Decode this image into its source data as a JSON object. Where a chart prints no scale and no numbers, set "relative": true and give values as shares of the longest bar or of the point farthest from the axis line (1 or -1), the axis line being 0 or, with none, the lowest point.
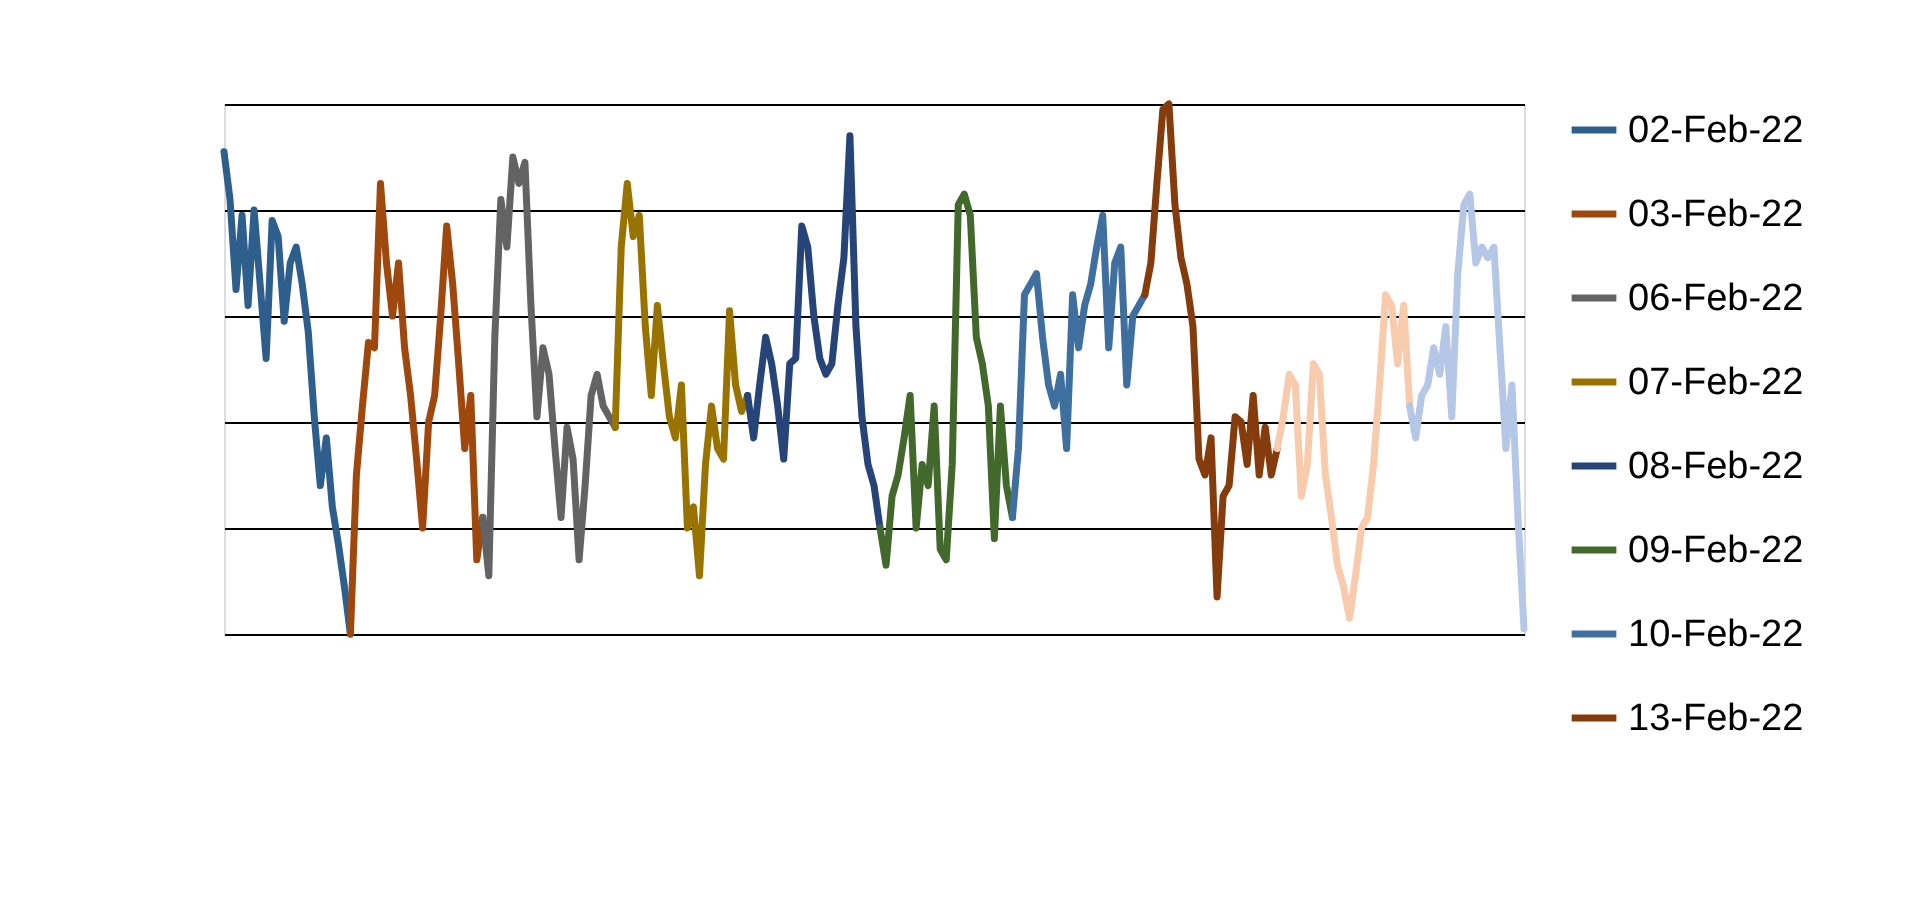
{
  "chart_data": {
    "type": "line",
    "relative": true,
    "tick_labels": false,
    "grid": "y",
    "legend": "right",
    "line_style": "solid",
    "marker": "none",
    "categories": [
      null,
      null,
      null,
      null,
      null,
      null,
      null,
      null,
      null,
      null,
      null,
      null,
      null,
      null,
      null,
      null,
      null,
      null,
      null,
      null,
      null,
      null,
      null,
      null,
      null,
      null,
      null,
      null,
      null,
      null,
      null,
      null,
      null,
      null,
      null,
      null,
      null,
      null,
      null,
      null,
      null,
      null,
      null,
      null,
      null,
      null,
      null,
      null,
      null,
      null,
      null,
      null,
      null,
      null,
      null,
      null,
      null,
      null,
      null,
      null,
      null,
      null,
      null,
      null,
      null,
      null,
      null,
      null,
      null,
      null,
      null,
      null,
      null,
      null,
      null,
      null,
      null,
      null,
      null,
      null,
      null,
      null,
      null,
      null,
      null,
      null,
      null,
      null,
      null,
      null,
      null,
      null,
      null,
      null,
      null,
      null,
      null,
      null,
      null,
      null,
      null,
      null,
      null,
      null,
      null,
      null,
      null,
      null,
      null,
      null,
      null,
      null,
      null,
      null,
      null,
      null,
      null,
      null,
      null,
      null,
      null,
      null,
      null,
      null,
      null,
      null,
      null,
      null,
      null,
      null,
      null,
      null,
      null,
      null,
      null,
      null,
      null,
      null,
      null,
      null,
      null,
      null,
      null,
      null,
      null,
      null,
      null,
      null,
      null,
      null,
      null,
      null,
      null,
      null,
      null,
      null,
      null,
      null,
      null,
      null,
      null,
      null,
      null,
      null,
      null,
      null,
      null,
      null,
      null,
      null,
      null,
      null,
      null,
      null,
      null,
      null,
      null,
      null,
      null,
      null,
      null,
      null,
      null,
      null,
      null,
      null,
      null,
      null,
      null,
      null,
      null,
      null,
      null,
      null,
      null,
      null,
      null,
      null,
      null,
      null,
      null,
      null,
      null,
      null,
      null,
      null,
      null,
      null,
      null,
      null,
      null,
      null,
      null,
      null,
      null,
      null,
      null
    ],
    "series": [
      {
        "name": "02-Feb-22",
        "color": "#2e5f8c",
        "values": [
          0.91,
          0.82,
          0.65,
          0.79,
          0.62,
          0.8,
          0.66,
          0.52,
          0.78,
          0.75,
          0.59,
          0.7,
          0.73,
          0.66,
          0.57,
          0.41,
          0.28,
          0.37,
          0.24,
          0.17,
          0.09,
          0,
          null,
          null,
          null,
          null,
          null,
          null,
          null,
          null,
          null,
          null,
          null,
          null,
          null,
          null,
          null,
          null,
          null,
          null,
          null,
          null,
          null,
          null,
          null,
          null,
          null,
          null,
          null,
          null,
          null,
          null,
          null,
          null,
          null,
          null,
          null,
          null,
          null,
          null,
          null,
          null,
          null,
          null,
          null,
          null,
          null,
          null,
          null,
          null,
          null,
          null,
          null,
          null,
          null,
          null,
          null,
          null,
          null,
          null,
          null,
          null,
          null,
          null,
          null,
          null,
          null,
          null,
          null,
          null,
          null,
          null,
          null,
          null,
          null,
          null,
          null,
          null,
          null,
          null,
          null,
          null,
          null,
          null,
          null,
          null,
          null,
          null,
          null,
          null,
          null,
          null,
          null,
          null,
          null,
          null,
          null,
          null,
          null,
          null,
          null,
          null,
          null,
          null,
          null,
          null,
          null,
          null,
          null,
          null,
          null,
          null,
          null,
          null,
          null,
          null,
          null,
          null,
          null,
          null,
          null,
          null,
          null,
          null,
          null,
          null,
          null,
          null,
          null,
          null,
          null,
          null,
          null,
          null,
          null,
          null,
          null,
          null,
          null,
          null,
          null,
          null,
          null,
          null,
          null,
          null,
          null,
          null,
          null,
          null,
          null,
          null,
          null,
          null,
          null,
          null,
          null,
          null,
          null,
          null,
          null,
          null,
          null,
          null,
          null,
          null,
          null,
          null,
          null,
          null,
          null,
          null,
          null,
          null,
          null,
          null,
          null,
          null,
          null,
          null,
          null,
          null,
          null,
          null,
          null,
          null,
          null,
          null,
          null,
          null,
          null,
          null,
          null,
          null,
          null,
          null,
          null
        ]
      },
      {
        "name": "03-Feb-22",
        "color": "#9e480e",
        "values": [
          null,
          null,
          null,
          null,
          null,
          null,
          null,
          null,
          null,
          null,
          null,
          null,
          null,
          null,
          null,
          null,
          null,
          null,
          null,
          null,
          null,
          0,
          0.3,
          0.43,
          0.55,
          0.54,
          0.85,
          0.7,
          0.6,
          0.7,
          0.54,
          0.45,
          0.33,
          0.2,
          0.4,
          0.45,
          0.6,
          0.77,
          0.66,
          0.51,
          0.35,
          0.45,
          0.14,
          0.22,
          null,
          null,
          null,
          null,
          null,
          null,
          null,
          null,
          null,
          null,
          null,
          null,
          null,
          null,
          null,
          null,
          null,
          null,
          null,
          null,
          null,
          null,
          null,
          null,
          null,
          null,
          null,
          null,
          null,
          null,
          null,
          null,
          null,
          null,
          null,
          null,
          null,
          null,
          null,
          null,
          null,
          null,
          null,
          null,
          null,
          null,
          null,
          null,
          null,
          null,
          null,
          null,
          null,
          null,
          null,
          null,
          null,
          null,
          null,
          null,
          null,
          null,
          null,
          null,
          null,
          null,
          null,
          null,
          null,
          null,
          null,
          null,
          null,
          null,
          null,
          null,
          null,
          null,
          null,
          null,
          null,
          null,
          null,
          null,
          null,
          null,
          null,
          null,
          null,
          null,
          null,
          null,
          null,
          null,
          null,
          null,
          null,
          null,
          null,
          null,
          null,
          null,
          null,
          null,
          null,
          null,
          null,
          null,
          null,
          null,
          null,
          null,
          null,
          null,
          null,
          null,
          null,
          null,
          null,
          null,
          null,
          null,
          null,
          null,
          null,
          null,
          null,
          null,
          null,
          null,
          null,
          null,
          null,
          null,
          null,
          null,
          null,
          null,
          null,
          null,
          null,
          null,
          null,
          null,
          null,
          null,
          null,
          null,
          null,
          null,
          null,
          null,
          null,
          null,
          null,
          null,
          null,
          null,
          null,
          null,
          null,
          null,
          null,
          null,
          null,
          null,
          null,
          null,
          null,
          null,
          null,
          null,
          null
        ]
      },
      {
        "name": "06-Feb-22",
        "color": "#636363",
        "values": [
          null,
          null,
          null,
          null,
          null,
          null,
          null,
          null,
          null,
          null,
          null,
          null,
          null,
          null,
          null,
          null,
          null,
          null,
          null,
          null,
          null,
          null,
          null,
          null,
          null,
          null,
          null,
          null,
          null,
          null,
          null,
          null,
          null,
          null,
          null,
          null,
          null,
          null,
          null,
          null,
          null,
          null,
          null,
          0.22,
          0.11,
          0.56,
          0.82,
          0.73,
          0.9,
          0.85,
          0.89,
          0.62,
          0.41,
          0.54,
          0.49,
          0.35,
          0.22,
          0.39,
          0.33,
          0.14,
          0.28,
          0.45,
          0.49,
          0.43,
          0.41,
          0.39,
          null,
          null,
          null,
          null,
          null,
          null,
          null,
          null,
          null,
          null,
          null,
          null,
          null,
          null,
          null,
          null,
          null,
          null,
          null,
          null,
          null,
          null,
          null,
          null,
          null,
          null,
          null,
          null,
          null,
          null,
          null,
          null,
          null,
          null,
          null,
          null,
          null,
          null,
          null,
          null,
          null,
          null,
          null,
          null,
          null,
          null,
          null,
          null,
          null,
          null,
          null,
          null,
          null,
          null,
          null,
          null,
          null,
          null,
          null,
          null,
          null,
          null,
          null,
          null,
          null,
          null,
          null,
          null,
          null,
          null,
          null,
          null,
          null,
          null,
          null,
          null,
          null,
          null,
          null,
          null,
          null,
          null,
          null,
          null,
          null,
          null,
          null,
          null,
          null,
          null,
          null,
          null,
          null,
          null,
          null,
          null,
          null,
          null,
          null,
          null,
          null,
          null,
          null,
          null,
          null,
          null,
          null,
          null,
          null,
          null,
          null,
          null,
          null,
          null,
          null,
          null,
          null,
          null,
          null,
          null,
          null,
          null,
          null,
          null,
          null,
          null,
          null,
          null,
          null,
          null,
          null,
          null,
          null,
          null,
          null,
          null,
          null,
          null,
          null,
          null,
          null,
          null,
          null,
          null,
          null,
          null,
          null,
          null,
          null,
          null,
          null
        ]
      },
      {
        "name": "07-Feb-22",
        "color": "#997300",
        "values": [
          null,
          null,
          null,
          null,
          null,
          null,
          null,
          null,
          null,
          null,
          null,
          null,
          null,
          null,
          null,
          null,
          null,
          null,
          null,
          null,
          null,
          null,
          null,
          null,
          null,
          null,
          null,
          null,
          null,
          null,
          null,
          null,
          null,
          null,
          null,
          null,
          null,
          null,
          null,
          null,
          null,
          null,
          null,
          null,
          null,
          null,
          null,
          null,
          null,
          null,
          null,
          null,
          null,
          null,
          null,
          null,
          null,
          null,
          null,
          null,
          null,
          null,
          null,
          null,
          null,
          0.39,
          0.73,
          0.85,
          0.75,
          0.79,
          0.58,
          0.45,
          0.62,
          0.51,
          0.41,
          0.37,
          0.47,
          0.2,
          0.24,
          0.11,
          0.32,
          0.43,
          0.35,
          0.33,
          0.61,
          0.47,
          0.42,
          0.45,
          null,
          null,
          null,
          null,
          null,
          null,
          null,
          null,
          null,
          null,
          null,
          null,
          null,
          null,
          null,
          null,
          null,
          null,
          null,
          null,
          null,
          null,
          null,
          null,
          null,
          null,
          null,
          null,
          null,
          null,
          null,
          null,
          null,
          null,
          null,
          null,
          null,
          null,
          null,
          null,
          null,
          null,
          null,
          null,
          null,
          null,
          null,
          null,
          null,
          null,
          null,
          null,
          null,
          null,
          null,
          null,
          null,
          null,
          null,
          null,
          null,
          null,
          null,
          null,
          null,
          null,
          null,
          null,
          null,
          null,
          null,
          null,
          null,
          null,
          null,
          null,
          null,
          null,
          null,
          null,
          null,
          null,
          null,
          null,
          null,
          null,
          null,
          null,
          null,
          null,
          null,
          null,
          null,
          null,
          null,
          null,
          null,
          null,
          null,
          null,
          null,
          null,
          null,
          null,
          null,
          null,
          null,
          null,
          null,
          null,
          null,
          null,
          null,
          null,
          null,
          null,
          null,
          null,
          null,
          null,
          null,
          null,
          null,
          null,
          null,
          null,
          null,
          null,
          null
        ]
      },
      {
        "name": "08-Feb-22",
        "color": "#264478",
        "values": [
          null,
          null,
          null,
          null,
          null,
          null,
          null,
          null,
          null,
          null,
          null,
          null,
          null,
          null,
          null,
          null,
          null,
          null,
          null,
          null,
          null,
          null,
          null,
          null,
          null,
          null,
          null,
          null,
          null,
          null,
          null,
          null,
          null,
          null,
          null,
          null,
          null,
          null,
          null,
          null,
          null,
          null,
          null,
          null,
          null,
          null,
          null,
          null,
          null,
          null,
          null,
          null,
          null,
          null,
          null,
          null,
          null,
          null,
          null,
          null,
          null,
          null,
          null,
          null,
          null,
          null,
          null,
          null,
          null,
          null,
          null,
          null,
          null,
          null,
          null,
          null,
          null,
          null,
          null,
          null,
          null,
          null,
          null,
          null,
          null,
          null,
          null,
          0.45,
          0.37,
          0.47,
          0.56,
          0.51,
          0.43,
          0.33,
          0.51,
          0.52,
          0.77,
          0.73,
          0.6,
          0.52,
          0.49,
          0.51,
          0.62,
          0.71,
          0.94,
          0.58,
          0.41,
          0.32,
          0.28,
          0.2,
          null,
          null,
          null,
          null,
          null,
          null,
          null,
          null,
          null,
          null,
          null,
          null,
          null,
          null,
          null,
          null,
          null,
          null,
          null,
          null,
          null,
          null,
          null,
          null,
          null,
          null,
          null,
          null,
          null,
          null,
          null,
          null,
          null,
          null,
          null,
          null,
          null,
          null,
          null,
          null,
          null,
          null,
          null,
          null,
          null,
          null,
          null,
          null,
          null,
          null,
          null,
          null,
          null,
          null,
          null,
          null,
          null,
          null,
          null,
          null,
          null,
          null,
          null,
          null,
          null,
          null,
          null,
          null,
          null,
          null,
          null,
          null,
          null,
          null,
          null,
          null,
          null,
          null,
          null,
          null,
          null,
          null,
          null,
          null,
          null,
          null,
          null,
          null,
          null,
          null,
          null,
          null,
          null,
          null,
          null,
          null,
          null,
          null,
          null,
          null,
          null,
          null,
          null,
          null,
          null,
          null,
          null
        ]
      },
      {
        "name": "09-Feb-22",
        "color": "#43682b",
        "values": [
          null,
          null,
          null,
          null,
          null,
          null,
          null,
          null,
          null,
          null,
          null,
          null,
          null,
          null,
          null,
          null,
          null,
          null,
          null,
          null,
          null,
          null,
          null,
          null,
          null,
          null,
          null,
          null,
          null,
          null,
          null,
          null,
          null,
          null,
          null,
          null,
          null,
          null,
          null,
          null,
          null,
          null,
          null,
          null,
          null,
          null,
          null,
          null,
          null,
          null,
          null,
          null,
          null,
          null,
          null,
          null,
          null,
          null,
          null,
          null,
          null,
          null,
          null,
          null,
          null,
          null,
          null,
          null,
          null,
          null,
          null,
          null,
          null,
          null,
          null,
          null,
          null,
          null,
          null,
          null,
          null,
          null,
          null,
          null,
          null,
          null,
          null,
          null,
          null,
          null,
          null,
          null,
          null,
          null,
          null,
          null,
          null,
          null,
          null,
          null,
          null,
          null,
          null,
          null,
          null,
          null,
          null,
          null,
          null,
          0.2,
          0.13,
          0.26,
          0.3,
          0.37,
          0.45,
          0.2,
          0.32,
          0.28,
          0.43,
          0.16,
          0.14,
          0.32,
          0.81,
          0.83,
          0.79,
          0.56,
          0.51,
          0.43,
          0.18,
          0.43,
          0.28,
          0.22,
          null,
          null,
          null,
          null,
          null,
          null,
          null,
          null,
          null,
          null,
          null,
          null,
          null,
          null,
          null,
          null,
          null,
          null,
          null,
          null,
          null,
          null,
          null,
          null,
          null,
          null,
          null,
          null,
          null,
          null,
          null,
          null,
          null,
          null,
          null,
          null,
          null,
          null,
          null,
          null,
          null,
          null,
          null,
          null,
          null,
          null,
          null,
          null,
          null,
          null,
          null,
          null,
          null,
          null,
          null,
          null,
          null,
          null,
          null,
          null,
          null,
          null,
          null,
          null,
          null,
          null,
          null,
          null,
          null,
          null,
          null,
          null,
          null,
          null,
          null,
          null,
          null,
          null,
          null,
          null,
          null,
          null,
          null,
          null,
          null
        ]
      },
      {
        "name": "10-Feb-22",
        "color": "#3e6f9e",
        "values": [
          null,
          null,
          null,
          null,
          null,
          null,
          null,
          null,
          null,
          null,
          null,
          null,
          null,
          null,
          null,
          null,
          null,
          null,
          null,
          null,
          null,
          null,
          null,
          null,
          null,
          null,
          null,
          null,
          null,
          null,
          null,
          null,
          null,
          null,
          null,
          null,
          null,
          null,
          null,
          null,
          null,
          null,
          null,
          null,
          null,
          null,
          null,
          null,
          null,
          null,
          null,
          null,
          null,
          null,
          null,
          null,
          null,
          null,
          null,
          null,
          null,
          null,
          null,
          null,
          null,
          null,
          null,
          null,
          null,
          null,
          null,
          null,
          null,
          null,
          null,
          null,
          null,
          null,
          null,
          null,
          null,
          null,
          null,
          null,
          null,
          null,
          null,
          null,
          null,
          null,
          null,
          null,
          null,
          null,
          null,
          null,
          null,
          null,
          null,
          null,
          null,
          null,
          null,
          null,
          null,
          null,
          null,
          null,
          null,
          null,
          null,
          null,
          null,
          null,
          null,
          null,
          null,
          null,
          null,
          null,
          null,
          null,
          null,
          null,
          null,
          null,
          null,
          null,
          null,
          null,
          null,
          0.22,
          0.35,
          0.64,
          0.66,
          0.68,
          0.56,
          0.47,
          0.43,
          0.49,
          0.35,
          0.64,
          0.54,
          0.62,
          0.66,
          0.73,
          0.79,
          0.54,
          0.7,
          0.73,
          0.47,
          0.6,
          0.62,
          0.64,
          null,
          null,
          null,
          null,
          null,
          null,
          null,
          null,
          null,
          null,
          null,
          null,
          null,
          null,
          null,
          null,
          null,
          null,
          null,
          null,
          null,
          null,
          null,
          null,
          null,
          null,
          null,
          null,
          null,
          null,
          null,
          null,
          null,
          null,
          null,
          null,
          null,
          null,
          null,
          null,
          null,
          null,
          null,
          null,
          null,
          null,
          null,
          null,
          null,
          null,
          null,
          null,
          null,
          null,
          null,
          null,
          null,
          null,
          null,
          null,
          null,
          null,
          null
        ]
      },
      {
        "name": "13-Feb-22",
        "color": "#843c0c",
        "values": [
          null,
          null,
          null,
          null,
          null,
          null,
          null,
          null,
          null,
          null,
          null,
          null,
          null,
          null,
          null,
          null,
          null,
          null,
          null,
          null,
          null,
          null,
          null,
          null,
          null,
          null,
          null,
          null,
          null,
          null,
          null,
          null,
          null,
          null,
          null,
          null,
          null,
          null,
          null,
          null,
          null,
          null,
          null,
          null,
          null,
          null,
          null,
          null,
          null,
          null,
          null,
          null,
          null,
          null,
          null,
          null,
          null,
          null,
          null,
          null,
          null,
          null,
          null,
          null,
          null,
          null,
          null,
          null,
          null,
          null,
          null,
          null,
          null,
          null,
          null,
          null,
          null,
          null,
          null,
          null,
          null,
          null,
          null,
          null,
          null,
          null,
          null,
          null,
          null,
          null,
          null,
          null,
          null,
          null,
          null,
          null,
          null,
          null,
          null,
          null,
          null,
          null,
          null,
          null,
          null,
          null,
          null,
          null,
          null,
          null,
          null,
          null,
          null,
          null,
          null,
          null,
          null,
          null,
          null,
          null,
          null,
          null,
          null,
          null,
          null,
          null,
          null,
          null,
          null,
          null,
          null,
          null,
          null,
          null,
          null,
          null,
          null,
          null,
          null,
          null,
          null,
          null,
          null,
          null,
          null,
          null,
          null,
          null,
          null,
          null,
          null,
          null,
          null,
          0.64,
          0.7,
          0.85,
          0.99,
          1.0,
          0.81,
          0.71,
          0.66,
          0.58,
          0.33,
          0.3,
          0.37,
          0.07,
          0.26,
          0.28,
          0.41,
          0.4,
          0.32,
          0.45,
          0.3,
          0.39,
          0.3,
          0.35,
          null,
          null,
          null,
          null,
          null,
          null,
          null,
          null,
          null,
          null,
          null,
          null,
          null,
          null,
          null,
          null,
          null,
          null,
          null,
          null,
          null,
          null,
          null,
          null,
          null,
          null,
          null,
          null,
          null,
          null,
          null,
          null,
          null,
          null,
          null,
          null,
          null,
          null,
          null,
          null,
          null
        ]
      },
      {
        "color": "#f8cbad",
        "values": [
          null,
          null,
          null,
          null,
          null,
          null,
          null,
          null,
          null,
          null,
          null,
          null,
          null,
          null,
          null,
          null,
          null,
          null,
          null,
          null,
          null,
          null,
          null,
          null,
          null,
          null,
          null,
          null,
          null,
          null,
          null,
          null,
          null,
          null,
          null,
          null,
          null,
          null,
          null,
          null,
          null,
          null,
          null,
          null,
          null,
          null,
          null,
          null,
          null,
          null,
          null,
          null,
          null,
          null,
          null,
          null,
          null,
          null,
          null,
          null,
          null,
          null,
          null,
          null,
          null,
          null,
          null,
          null,
          null,
          null,
          null,
          null,
          null,
          null,
          null,
          null,
          null,
          null,
          null,
          null,
          null,
          null,
          null,
          null,
          null,
          null,
          null,
          null,
          null,
          null,
          null,
          null,
          null,
          null,
          null,
          null,
          null,
          null,
          null,
          null,
          null,
          null,
          null,
          null,
          null,
          null,
          null,
          null,
          null,
          null,
          null,
          null,
          null,
          null,
          null,
          null,
          null,
          null,
          null,
          null,
          null,
          null,
          null,
          null,
          null,
          null,
          null,
          null,
          null,
          null,
          null,
          null,
          null,
          null,
          null,
          null,
          null,
          null,
          null,
          null,
          null,
          null,
          null,
          null,
          null,
          null,
          null,
          null,
          null,
          null,
          null,
          null,
          null,
          null,
          null,
          null,
          null,
          null,
          null,
          null,
          null,
          null,
          null,
          null,
          null,
          null,
          null,
          null,
          null,
          null,
          null,
          null,
          null,
          null,
          null,
          0.35,
          0.41,
          0.49,
          0.47,
          0.26,
          0.32,
          0.51,
          0.49,
          0.3,
          0.22,
          0.13,
          0.09,
          0.03,
          0.11,
          0.2,
          0.22,
          0.32,
          0.47,
          0.64,
          0.62,
          0.51,
          0.62,
          0.43,
          null,
          null,
          null,
          null,
          null,
          null,
          null,
          null,
          null,
          null,
          null,
          null,
          null,
          null,
          null,
          null,
          null,
          null,
          null
        ]
      },
      {
        "color": "#b4c7e7",
        "values": [
          null,
          null,
          null,
          null,
          null,
          null,
          null,
          null,
          null,
          null,
          null,
          null,
          null,
          null,
          null,
          null,
          null,
          null,
          null,
          null,
          null,
          null,
          null,
          null,
          null,
          null,
          null,
          null,
          null,
          null,
          null,
          null,
          null,
          null,
          null,
          null,
          null,
          null,
          null,
          null,
          null,
          null,
          null,
          null,
          null,
          null,
          null,
          null,
          null,
          null,
          null,
          null,
          null,
          null,
          null,
          null,
          null,
          null,
          null,
          null,
          null,
          null,
          null,
          null,
          null,
          null,
          null,
          null,
          null,
          null,
          null,
          null,
          null,
          null,
          null,
          null,
          null,
          null,
          null,
          null,
          null,
          null,
          null,
          null,
          null,
          null,
          null,
          null,
          null,
          null,
          null,
          null,
          null,
          null,
          null,
          null,
          null,
          null,
          null,
          null,
          null,
          null,
          null,
          null,
          null,
          null,
          null,
          null,
          null,
          null,
          null,
          null,
          null,
          null,
          null,
          null,
          null,
          null,
          null,
          null,
          null,
          null,
          null,
          null,
          null,
          null,
          null,
          null,
          null,
          null,
          null,
          null,
          null,
          null,
          null,
          null,
          null,
          null,
          null,
          null,
          null,
          null,
          null,
          null,
          null,
          null,
          null,
          null,
          null,
          null,
          null,
          null,
          null,
          null,
          null,
          null,
          null,
          null,
          null,
          null,
          null,
          null,
          null,
          null,
          null,
          null,
          null,
          null,
          null,
          null,
          null,
          null,
          null,
          null,
          null,
          null,
          null,
          null,
          null,
          null,
          null,
          null,
          null,
          null,
          null,
          null,
          null,
          null,
          null,
          null,
          null,
          null,
          null,
          null,
          null,
          null,
          null,
          0.43,
          0.37,
          0.45,
          0.47,
          0.54,
          0.49,
          0.58,
          0.41,
          0.68,
          0.81,
          0.83,
          0.7,
          0.73,
          0.71,
          0.73,
          0.54,
          0.35,
          0.47,
          0.22,
          0.01
        ]
      }
    ]
  }
}
